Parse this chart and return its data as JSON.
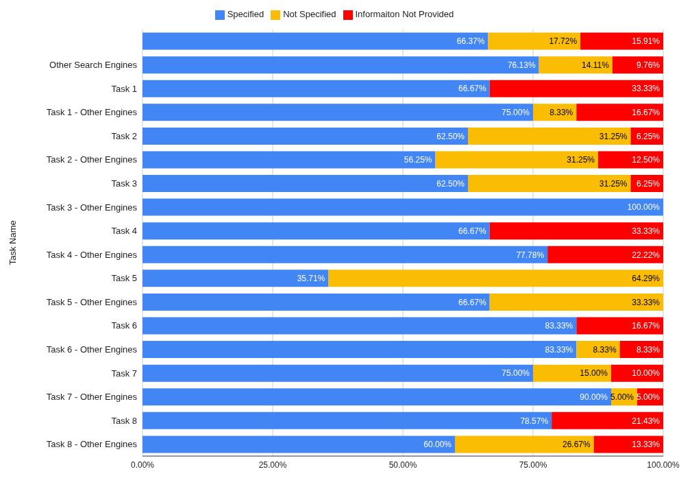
{
  "chart_data": {
    "type": "bar",
    "orientation": "horizontal",
    "stacked": true,
    "ylabel": "Task Name",
    "legend": "top",
    "grid": "x",
    "categories": [
      null,
      "Other Search Engines",
      "Task 1",
      "Task 1 - Other Engines",
      "Task 2",
      "Task 2 - Other Engines",
      "Task 3",
      "Task 3 - Other Engines",
      "Task 4",
      "Task 4 - Other Engines",
      "Task 5",
      "Task 5 - Other Engines",
      "Task 6",
      "Task 6 - Other Engines",
      "Task 7",
      "Task 7 - Other Engines",
      "Task 8",
      "Task 8 - Other Engines"
    ],
    "xlim": [
      0,
      100
    ],
    "xticks": [
      {
        "value": 0,
        "label": "0.00%"
      },
      {
        "value": 25,
        "label": "25.00%"
      },
      {
        "value": 50,
        "label": "50.00%"
      },
      {
        "value": 75,
        "label": "75.00%"
      },
      {
        "value": 100,
        "label": "100.00%"
      }
    ],
    "series": [
      {
        "name": "Specified",
        "color": "#4285f4",
        "values": [
          66.37,
          76.13,
          66.67,
          75,
          62.5,
          56.25,
          62.5,
          100,
          66.67,
          77.78,
          35.71,
          66.67,
          83.33,
          83.33,
          75,
          90,
          78.57,
          60
        ],
        "value_labels": [
          "66.37%",
          "76.13%",
          "66.67%",
          "75.00%",
          "62.50%",
          "56.25%",
          "62.50%",
          "100.00%",
          "66.67%",
          "77.78%",
          "35.71%",
          "66.67%",
          "83.33%",
          "83.33%",
          "75.00%",
          "90.00%",
          "78.57%",
          "60.00%"
        ]
      },
      {
        "name": "Not Specified",
        "color": "#fbbc04",
        "values": [
          17.72,
          14.11,
          null,
          8.33,
          31.25,
          31.25,
          31.25,
          null,
          null,
          null,
          64.29,
          33.33,
          null,
          8.33,
          15,
          5,
          null,
          26.67
        ],
        "value_labels": [
          "17.72%",
          "14.11%",
          null,
          "8.33%",
          "31.25%",
          "31.25%",
          "31.25%",
          null,
          null,
          null,
          "64.29%",
          "33.33%",
          null,
          "8.33%",
          "15.00%",
          "5.00%",
          null,
          "26.67%"
        ]
      },
      {
        "name": "Informaiton Not Provided",
        "color": "#ff0000",
        "values": [
          15.91,
          9.76,
          33.33,
          16.67,
          6.25,
          12.5,
          6.25,
          null,
          33.33,
          22.22,
          null,
          null,
          16.67,
          8.33,
          10,
          5,
          21.43,
          13.33
        ],
        "value_labels": [
          "15.91%",
          "9.76%",
          "33.33%",
          "16.67%",
          "6.25%",
          "12.50%",
          "6.25%",
          null,
          "33.33%",
          "22.22%",
          null,
          null,
          "16.67%",
          "8.33%",
          "10.00%",
          "5.00%",
          "21.43%",
          "13.33%"
        ]
      }
    ]
  }
}
